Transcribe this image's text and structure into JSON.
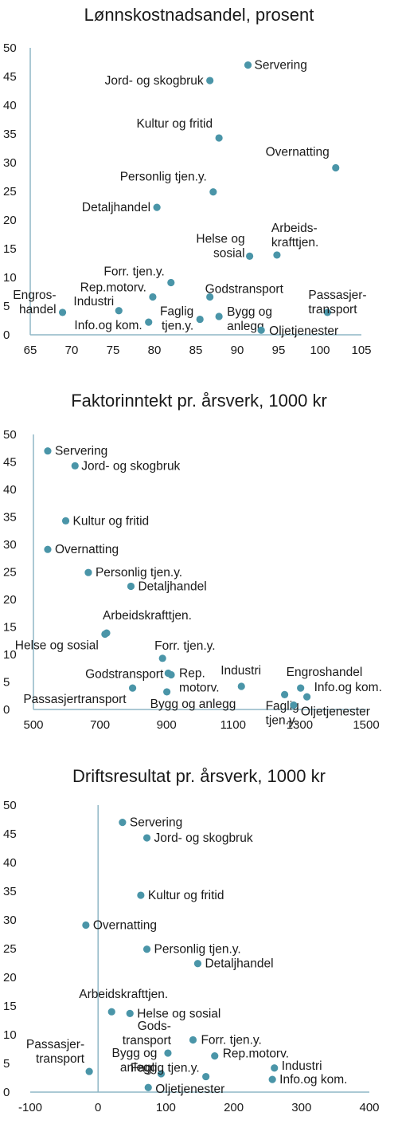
{
  "chart_data": [
    {
      "type": "scatter",
      "title": "Lønnskostnadsandel, prosent",
      "xlim": [
        65,
        105
      ],
      "ylim": [
        0,
        50
      ],
      "xticks": [
        65,
        70,
        75,
        80,
        85,
        90,
        95,
        100,
        105
      ],
      "yticks": [
        0,
        5,
        10,
        15,
        20,
        25,
        30,
        35,
        40,
        45,
        50
      ],
      "grid": false,
      "point_color": "#4a95a8",
      "points": [
        {
          "label": "Servering",
          "x": 91.3,
          "y": 47
        },
        {
          "label": "Jord- og skogbruk",
          "x": 86.7,
          "y": 44.3
        },
        {
          "label": "Kultur og fritid",
          "x": 87.8,
          "y": 34.3
        },
        {
          "label": "Overnatting",
          "x": 101.9,
          "y": 29.1
        },
        {
          "label": "Personlig tjen.y.",
          "x": 87.1,
          "y": 24.9
        },
        {
          "label": "Detaljhandel",
          "x": 80.3,
          "y": 22.2
        },
        {
          "label": "Arbeids-|krafttjen.",
          "x": 94.8,
          "y": 13.9
        },
        {
          "label": "Helse og|sosial",
          "x": 91.5,
          "y": 13.7
        },
        {
          "label": "Forr. tjen.y.",
          "x": 82,
          "y": 9.1
        },
        {
          "label": "Rep.motorv.",
          "x": 79.8,
          "y": 6.6
        },
        {
          "label": "Godstransport",
          "x": 86.7,
          "y": 6.6
        },
        {
          "label": "Engros-|handel",
          "x": 68.9,
          "y": 3.9
        },
        {
          "label": "Industri",
          "x": 75.7,
          "y": 4.2
        },
        {
          "label": "Passasjer-|transport",
          "x": 100.9,
          "y": 3.9
        },
        {
          "label": "Bygg og|anlegg",
          "x": 87.8,
          "y": 3.2
        },
        {
          "label": "Faglig|tjen.y.",
          "x": 85.5,
          "y": 2.7
        },
        {
          "label": "Info.og kom.",
          "x": 79.3,
          "y": 2.2
        },
        {
          "label": "Oljetjenester",
          "x": 92.9,
          "y": 0.8
        }
      ]
    },
    {
      "type": "scatter",
      "title": "Faktorinntekt pr. årsverk, 1000 kr",
      "xlim": [
        500,
        1500
      ],
      "ylim": [
        0,
        50
      ],
      "xticks": [
        500,
        700,
        900,
        1100,
        1300,
        1500
      ],
      "yticks": [
        0,
        5,
        10,
        15,
        20,
        25,
        30,
        35,
        40,
        45,
        50
      ],
      "grid": false,
      "point_color": "#4a95a8",
      "points": [
        {
          "label": "Servering",
          "x": 543,
          "y": 47
        },
        {
          "label": "Jord- og skogbruk",
          "x": 625,
          "y": 44.3
        },
        {
          "label": "Kultur og fritid",
          "x": 597,
          "y": 34.3
        },
        {
          "label": "Overnatting",
          "x": 543,
          "y": 29.1
        },
        {
          "label": "Personlig tjen.y.",
          "x": 665,
          "y": 24.9
        },
        {
          "label": "Detaljhandel",
          "x": 793,
          "y": 22.4
        },
        {
          "label": "Arbeidskrafttjen.",
          "x": 720,
          "y": 13.9
        },
        {
          "label": "Helse og sosial",
          "x": 715,
          "y": 13.7
        },
        {
          "label": "Forr. tjen.y.",
          "x": 888,
          "y": 9.3
        },
        {
          "label": "Godstransport",
          "x": 905,
          "y": 6.6
        },
        {
          "label": "Rep.|motorv.",
          "x": 914,
          "y": 6.3
        },
        {
          "label": "Industri",
          "x": 1125,
          "y": 4.2
        },
        {
          "label": "Engroshandel",
          "x": 1303,
          "y": 3.9
        },
        {
          "label": "Passasjertransport",
          "x": 798,
          "y": 3.9
        },
        {
          "label": "Bygg og anlegg",
          "x": 901,
          "y": 3.2
        },
        {
          "label": "Faglig|tjen.y.",
          "x": 1255,
          "y": 2.7
        },
        {
          "label": "Info.og kom.",
          "x": 1322,
          "y": 2.3
        },
        {
          "label": "Oljetjenester",
          "x": 1282,
          "y": 0.8
        }
      ]
    },
    {
      "type": "scatter",
      "title": "Driftsresultat pr. årsverk, 1000 kr",
      "xlim": [
        -100,
        400
      ],
      "ylim": [
        0,
        50
      ],
      "xticks": [
        -100,
        0,
        100,
        200,
        300,
        400
      ],
      "yticks": [
        0,
        5,
        10,
        15,
        20,
        25,
        30,
        35,
        40,
        45,
        50
      ],
      "grid": false,
      "point_color": "#4a95a8",
      "points": [
        {
          "label": "Servering",
          "x": 36,
          "y": 47
        },
        {
          "label": "Jord- og skogbruk",
          "x": 72,
          "y": 44.3
        },
        {
          "label": "Kultur og fritid",
          "x": 63,
          "y": 34.3
        },
        {
          "label": "Overnatting",
          "x": -18,
          "y": 29.1
        },
        {
          "label": "Personlig tjen.y.",
          "x": 72,
          "y": 24.9
        },
        {
          "label": "Detaljhandel",
          "x": 147,
          "y": 22.4
        },
        {
          "label": "Arbeidskrafttjen.",
          "x": 20,
          "y": 14
        },
        {
          "label": "Helse og sosial",
          "x": 47,
          "y": 13.7
        },
        {
          "label": "Forr. tjen.y.",
          "x": 140,
          "y": 9.1
        },
        {
          "label": "Gods-|transport",
          "x": 103,
          "y": 6.8
        },
        {
          "label": "Rep.motorv.",
          "x": 172,
          "y": 6.3
        },
        {
          "label": "Industri",
          "x": 260,
          "y": 4.2
        },
        {
          "label": "Passasjer-|transport",
          "x": -13,
          "y": 3.6
        },
        {
          "label": "Bygg og|anlegg",
          "x": 93,
          "y": 3.2
        },
        {
          "label": "Faglig tjen.y.",
          "x": 159,
          "y": 2.7
        },
        {
          "label": "Info.og kom.",
          "x": 257,
          "y": 2.2
        },
        {
          "label": "Oljetjenester",
          "x": 74,
          "y": 0.8
        }
      ]
    }
  ]
}
